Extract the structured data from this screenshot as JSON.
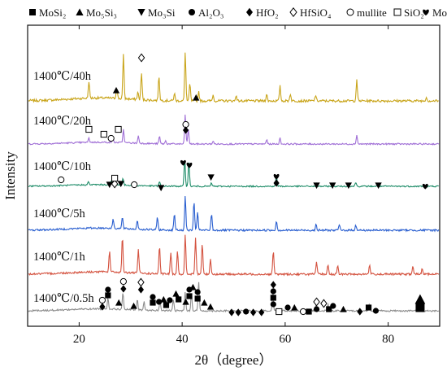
{
  "chart_data": {
    "type": "line",
    "xlabel": "2θ（degree）",
    "ylabel": "Intensity",
    "xlim": [
      10,
      90
    ],
    "x_ticks": [
      20,
      40,
      60,
      80
    ],
    "legend": {
      "placement": "top",
      "entries": [
        {
          "symbol": "square",
          "label": "MoSi₂"
        },
        {
          "symbol": "triangle",
          "label": "Mo₅Si₃"
        },
        {
          "symbol": "triangle-down",
          "label": "Mo₃Si"
        },
        {
          "symbol": "circle",
          "label": "Al₂O₃"
        },
        {
          "symbol": "diamond",
          "label": "HfO₂"
        },
        {
          "symbol": "diamond-open",
          "label": "HfSiO₄"
        },
        {
          "symbol": "circle-open",
          "label": "mullite"
        },
        {
          "symbol": "square-open",
          "label": "SiO₂"
        },
        {
          "symbol": "heart",
          "label": "Mo"
        }
      ]
    },
    "series": [
      {
        "name": "1400℃/40h",
        "color": "#c9a51b",
        "peaks": [
          [
            21.9,
            0.35
          ],
          [
            27.3,
            0.22
          ],
          [
            28.6,
            0.9
          ],
          [
            31.4,
            0.15
          ],
          [
            32.1,
            0.55
          ],
          [
            35.5,
            0.5
          ],
          [
            38.5,
            0.15
          ],
          [
            40.6,
            1.0
          ],
          [
            41.5,
            0.35
          ],
          [
            43.2,
            0.2
          ],
          [
            46.0,
            0.12
          ],
          [
            50.5,
            0.12
          ],
          [
            56.4,
            0.14
          ],
          [
            59.0,
            0.3
          ],
          [
            61.0,
            0.15
          ],
          [
            65.9,
            0.12
          ],
          [
            73.9,
            0.42
          ],
          [
            87.4,
            0.08
          ]
        ]
      },
      {
        "name": "1400℃/20h",
        "color": "#a06fd6",
        "peaks": [
          [
            21.9,
            0.15
          ],
          [
            26.5,
            0.2
          ],
          [
            28.6,
            0.45
          ],
          [
            31.5,
            0.25
          ],
          [
            35.6,
            0.25
          ],
          [
            36.8,
            0.1
          ],
          [
            40.6,
            1.0
          ],
          [
            41.2,
            0.5
          ],
          [
            46.0,
            0.1
          ],
          [
            56.4,
            0.15
          ],
          [
            59.0,
            0.2
          ],
          [
            73.9,
            0.3
          ]
        ]
      },
      {
        "name": "1400℃/10h",
        "color": "#1e8c68",
        "peaks": [
          [
            21.8,
            0.1
          ],
          [
            26.3,
            0.15
          ],
          [
            28.5,
            0.25
          ],
          [
            35.6,
            0.15
          ],
          [
            40.5,
            1.0
          ],
          [
            41.3,
            0.9
          ],
          [
            45.7,
            0.12
          ],
          [
            58.3,
            0.4
          ],
          [
            66.1,
            0.1
          ],
          [
            73.7,
            0.15
          ]
        ]
      },
      {
        "name": "1400℃/5h",
        "color": "#2a5fd0",
        "peaks": [
          [
            26.6,
            0.25
          ],
          [
            28.4,
            0.3
          ],
          [
            31.3,
            0.25
          ],
          [
            35.2,
            0.35
          ],
          [
            38.5,
            0.45
          ],
          [
            40.6,
            0.9
          ],
          [
            42.3,
            0.75
          ],
          [
            43.0,
            0.5
          ],
          [
            45.7,
            0.45
          ],
          [
            58.3,
            0.25
          ],
          [
            66.0,
            0.15
          ],
          [
            70.5,
            0.15
          ],
          [
            73.7,
            0.15
          ]
        ]
      },
      {
        "name": "1400℃/1h",
        "color": "#d4523f",
        "peaks": [
          [
            25.9,
            0.55
          ],
          [
            28.4,
            0.9
          ],
          [
            31.5,
            0.6
          ],
          [
            35.6,
            0.7
          ],
          [
            37.8,
            0.55
          ],
          [
            39.1,
            0.6
          ],
          [
            40.6,
            1.0
          ],
          [
            42.6,
            0.95
          ],
          [
            43.9,
            0.8
          ],
          [
            45.5,
            0.4
          ],
          [
            57.7,
            0.6
          ],
          [
            66.1,
            0.3
          ],
          [
            68.3,
            0.25
          ],
          [
            70.2,
            0.2
          ],
          [
            76.4,
            0.25
          ],
          [
            84.8,
            0.2
          ],
          [
            86.6,
            0.15
          ]
        ]
      },
      {
        "name": "1400℃/0.5h",
        "color": "#8c8c8c",
        "peaks": [
          [
            25.6,
            0.35
          ],
          [
            28.5,
            0.5
          ],
          [
            31.3,
            0.3
          ],
          [
            32.6,
            0.25
          ],
          [
            35.7,
            0.3
          ],
          [
            38.3,
            0.35
          ],
          [
            40.6,
            0.6
          ],
          [
            41.8,
            0.55
          ],
          [
            43.2,
            0.9
          ],
          [
            57.6,
            0.6
          ],
          [
            66.0,
            0.2
          ],
          [
            68.3,
            0.2
          ],
          [
            76.3,
            0.2
          ],
          [
            86.2,
            0.15
          ]
        ]
      }
    ]
  }
}
